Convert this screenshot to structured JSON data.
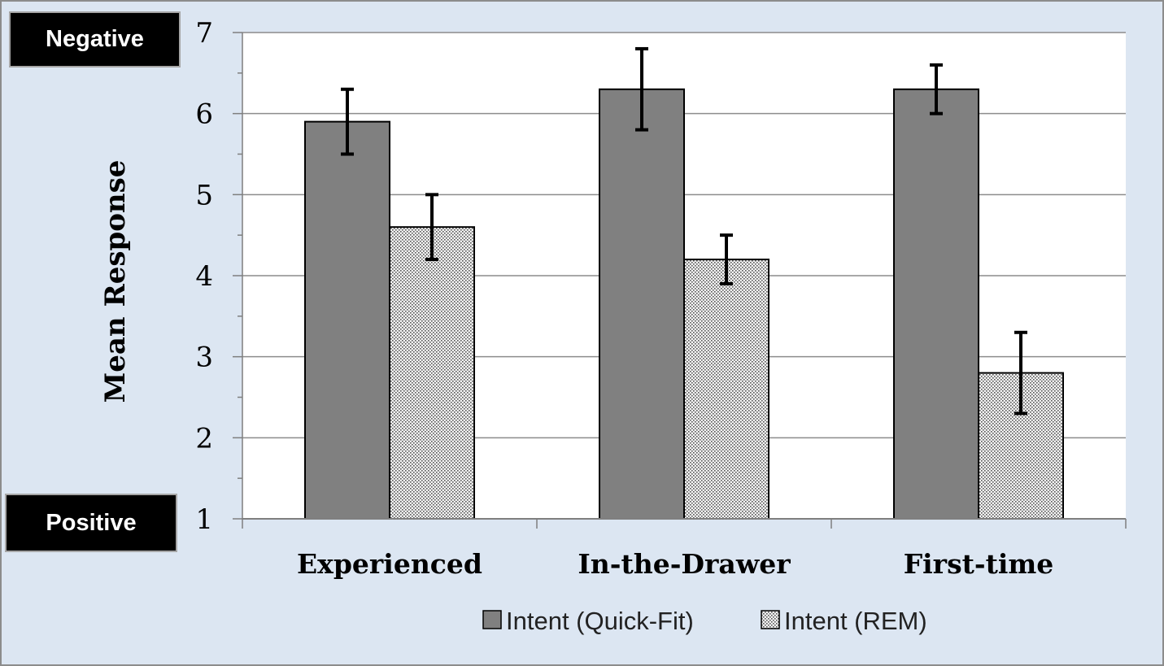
{
  "labels": {
    "negative": "Negative",
    "positive": "Positive"
  },
  "chart_data": {
    "type": "bar",
    "categories": [
      "Experienced",
      "In-the-Drawer",
      "First-time"
    ],
    "series": [
      {
        "name": "Intent (Quick-Fit)",
        "values": [
          5.9,
          6.3,
          6.3
        ],
        "error": [
          0.4,
          0.5,
          0.3
        ],
        "color": "#808080",
        "pattern": "solid"
      },
      {
        "name": "Intent (REM)",
        "values": [
          4.6,
          4.2,
          2.8
        ],
        "error": [
          0.4,
          0.3,
          0.5
        ],
        "color": "#e8e8e8",
        "pattern": "dotted"
      }
    ],
    "ylabel": "Mean Response",
    "xlabel": "",
    "ylim": [
      1,
      7
    ],
    "yticks": [
      1,
      2,
      3,
      4,
      5,
      6,
      7
    ],
    "grid": true,
    "legend": "bottom"
  }
}
